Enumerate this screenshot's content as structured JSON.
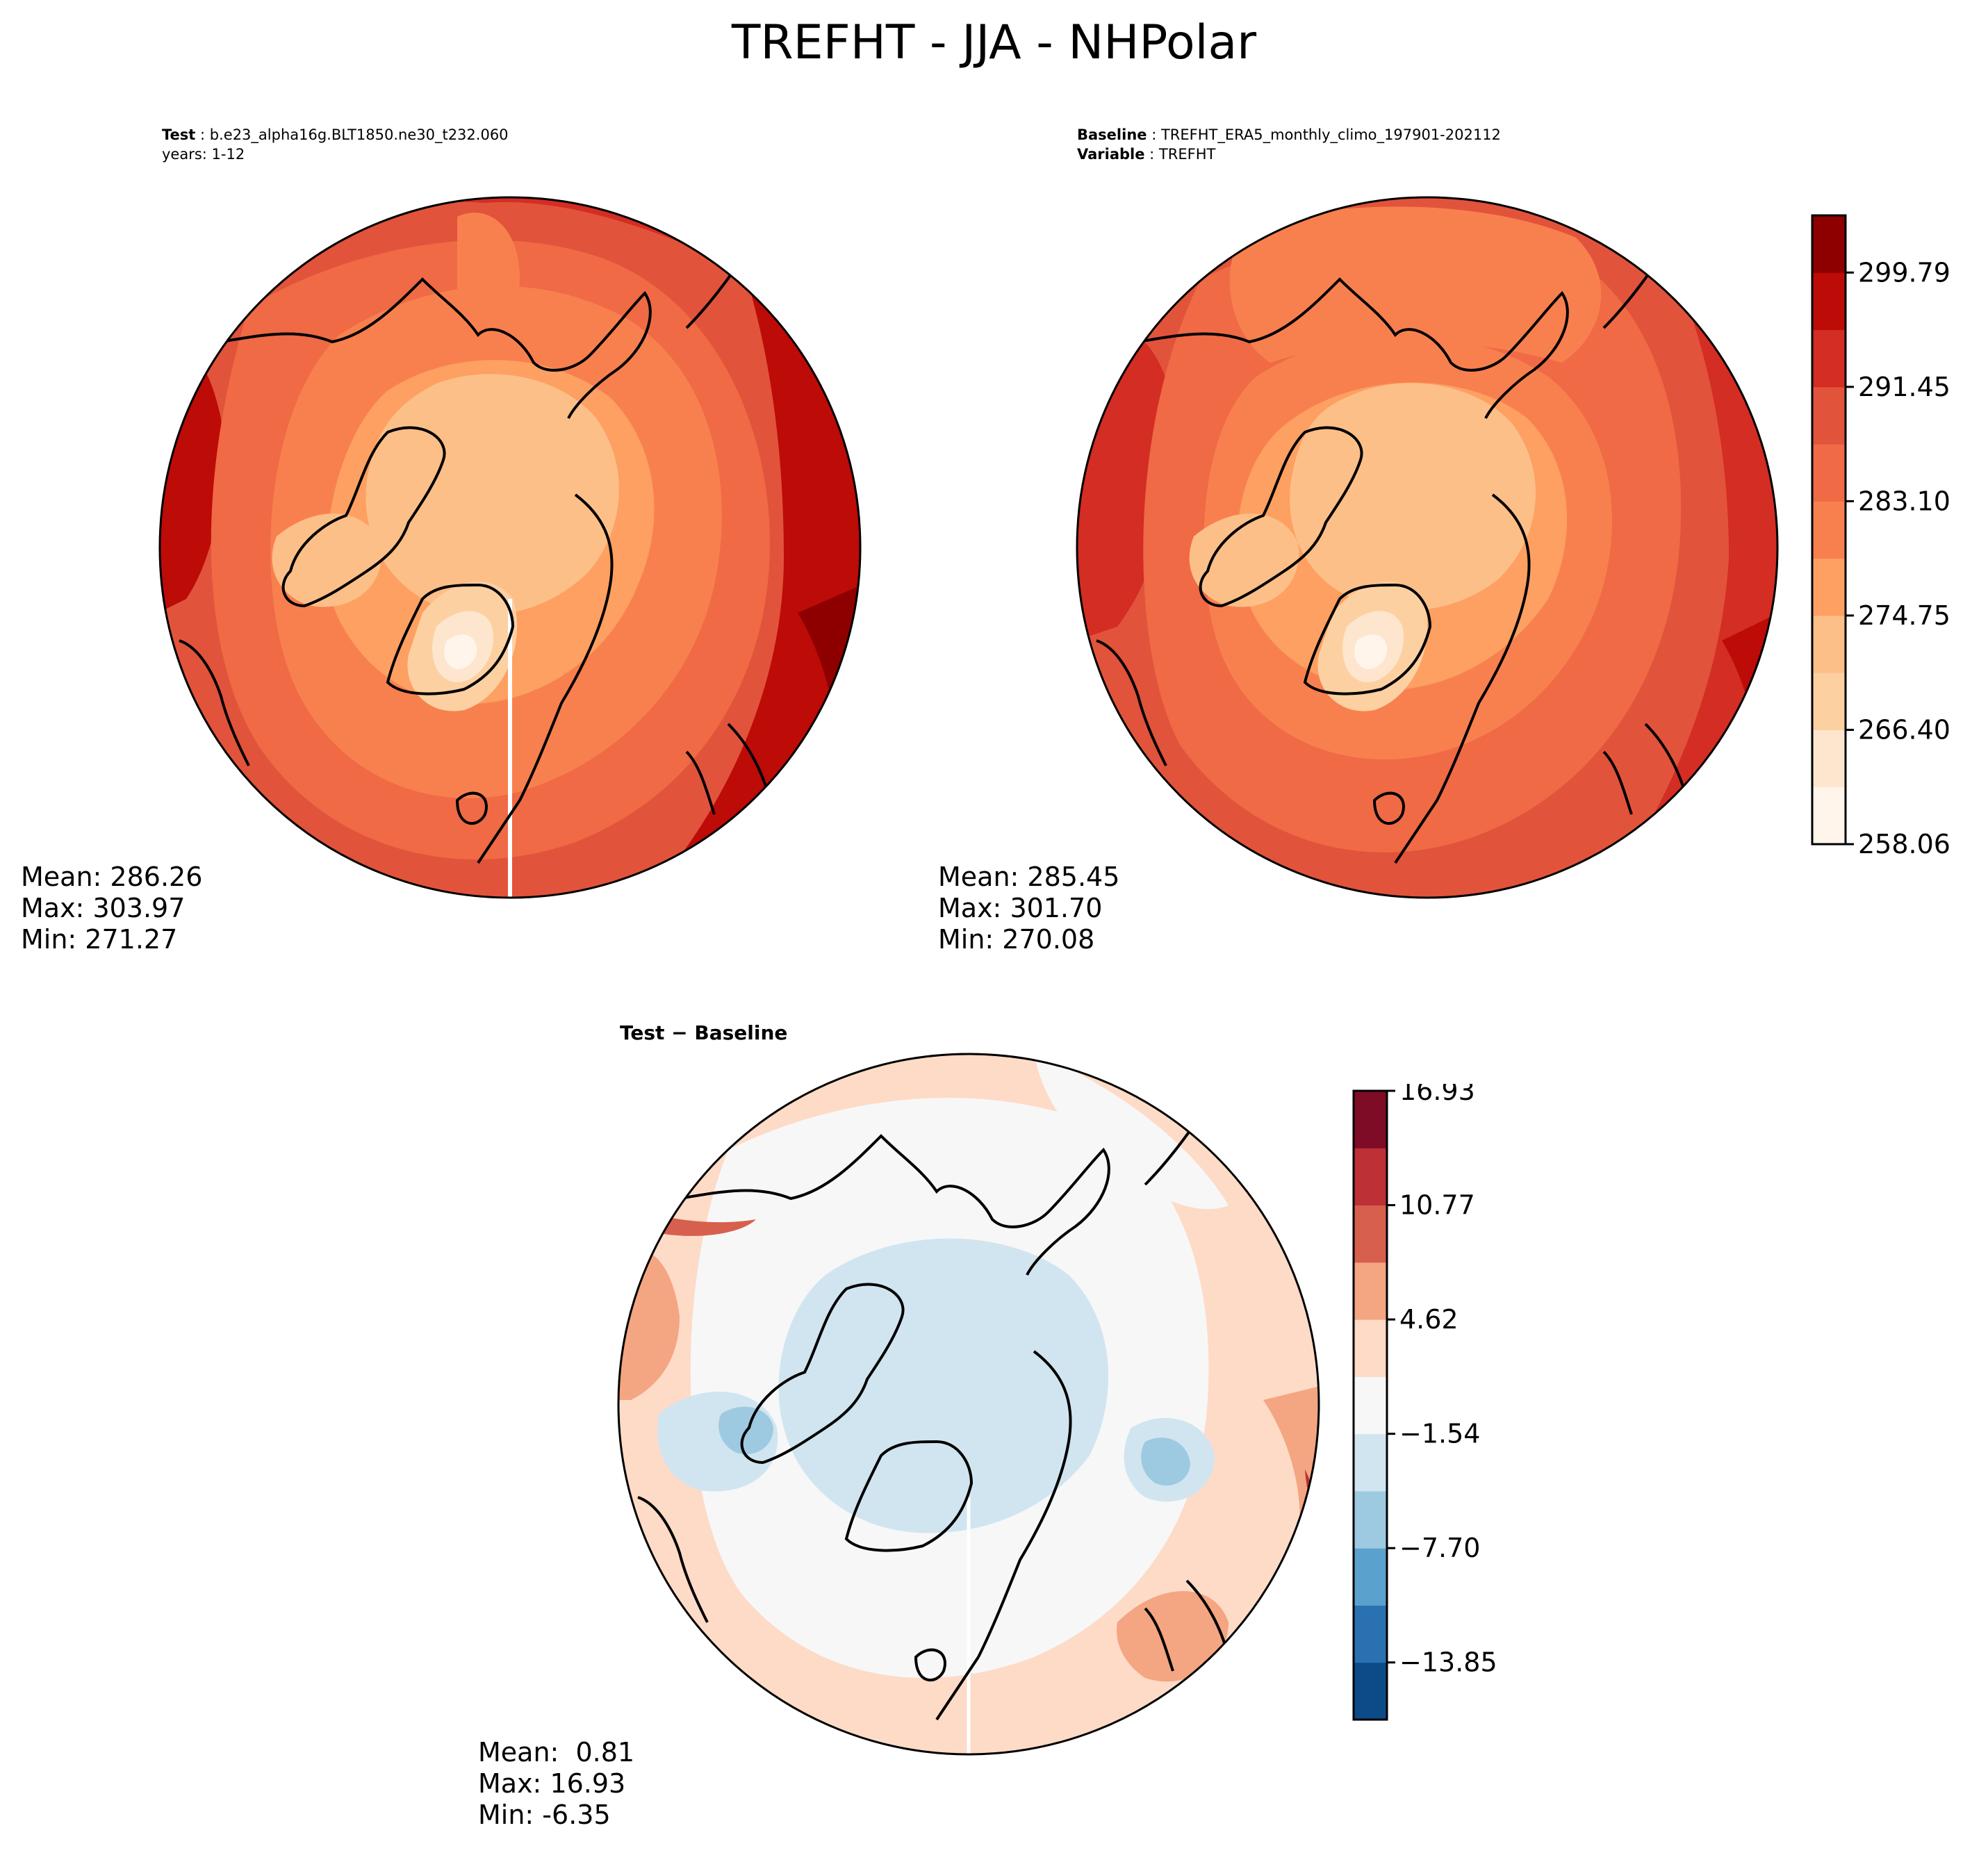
{
  "title": "TREFHT - JJA - NHPolar",
  "panels": {
    "test": {
      "label_key": "Test",
      "label_value": "b.e23_alpha16g.BLT1850.ne30_t232.060",
      "line2": "years: 1-12",
      "stats": {
        "mean": "Mean: 286.26",
        "max": "Max: 303.97",
        "min": "Min: 271.27"
      }
    },
    "baseline": {
      "label_key": "Baseline",
      "label_value": "TREFHT_ERA5_monthly_climo_197901-202112",
      "line2_key": "Variable",
      "line2_value": "TREFHT",
      "stats": {
        "mean": "Mean: 285.45",
        "max": "Max: 301.70",
        "min": "Min: 270.08"
      }
    },
    "diff": {
      "title": "Test − Baseline",
      "stats": {
        "mean": "Mean:  0.81",
        "max": "Max: 16.93",
        "min": "Min: -6.35"
      }
    }
  },
  "colorbars": {
    "main": {
      "colors": [
        "#fff5eb",
        "#fee6ce",
        "#fdd0a2",
        "#fdbf88",
        "#fda062",
        "#f8804f",
        "#ef6a45",
        "#e2533b",
        "#d42d23",
        "#bd0b08",
        "#8e0000"
      ],
      "tick_labels": [
        "258.06",
        "266.40",
        "274.75",
        "283.10",
        "291.45",
        "299.79"
      ],
      "min": 258.06,
      "max": 305.0
    },
    "diff": {
      "colors": [
        "#0d4b88",
        "#2a71b2",
        "#5ba1cd",
        "#9ecae1",
        "#d1e5f0",
        "#f7f7f7",
        "#fddbc7",
        "#f4a582",
        "#d6604d",
        "#bd3035",
        "#7f0c26"
      ],
      "tick_labels": [
        "−13.85",
        "−7.70",
        "−1.54",
        "4.62",
        "10.77",
        "16.93"
      ]
    }
  }
}
